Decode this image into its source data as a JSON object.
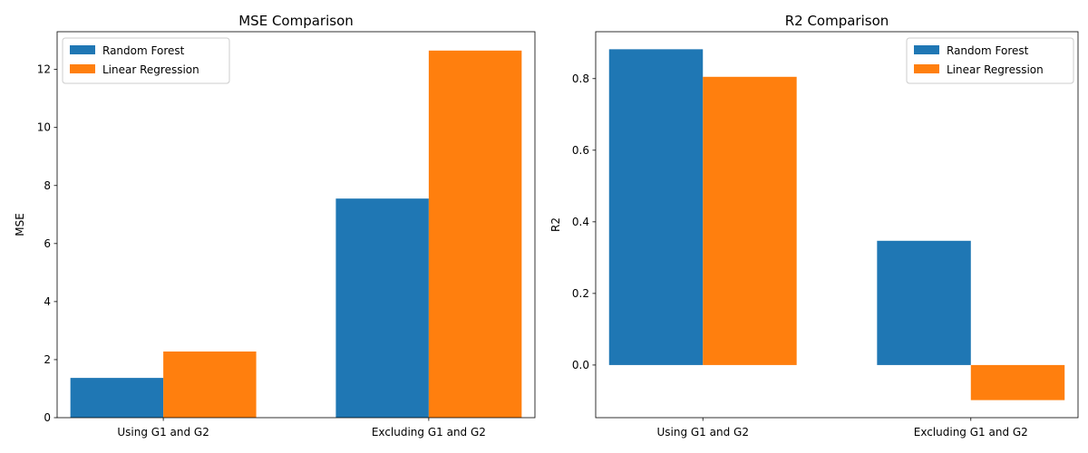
{
  "chart_data": [
    {
      "type": "bar",
      "title": "MSE Comparison",
      "xlabel": "",
      "ylabel": "MSE",
      "categories": [
        "Using G1 and G2",
        "Excluding G1 and G2"
      ],
      "series": [
        {
          "name": "Random Forest",
          "values": [
            1.37,
            7.55
          ],
          "color": "#1f77b4"
        },
        {
          "name": "Linear Regression",
          "values": [
            2.28,
            12.65
          ],
          "color": "#ff7f0e"
        }
      ],
      "ylim": [
        0,
        13.3
      ],
      "yticks": [
        0,
        2,
        4,
        6,
        8,
        10,
        12
      ],
      "ytick_labels": [
        "0",
        "2",
        "4",
        "6",
        "8",
        "10",
        "12"
      ],
      "legend": "top-left",
      "grid": false
    },
    {
      "type": "bar",
      "title": "R2 Comparison",
      "xlabel": "",
      "ylabel": "R2",
      "categories": [
        "Using G1 and G2",
        "Excluding G1 and G2"
      ],
      "series": [
        {
          "name": "Random Forest",
          "values": [
            0.882,
            0.347
          ],
          "color": "#1f77b4"
        },
        {
          "name": "Linear Regression",
          "values": [
            0.805,
            -0.098
          ],
          "color": "#ff7f0e"
        }
      ],
      "ylim": [
        -0.147,
        0.931
      ],
      "yticks": [
        0.0,
        0.2,
        0.4,
        0.6,
        0.8
      ],
      "ytick_labels": [
        "0.0",
        "0.2",
        "0.4",
        "0.6",
        "0.8"
      ],
      "legend": "top-right",
      "grid": false
    }
  ]
}
